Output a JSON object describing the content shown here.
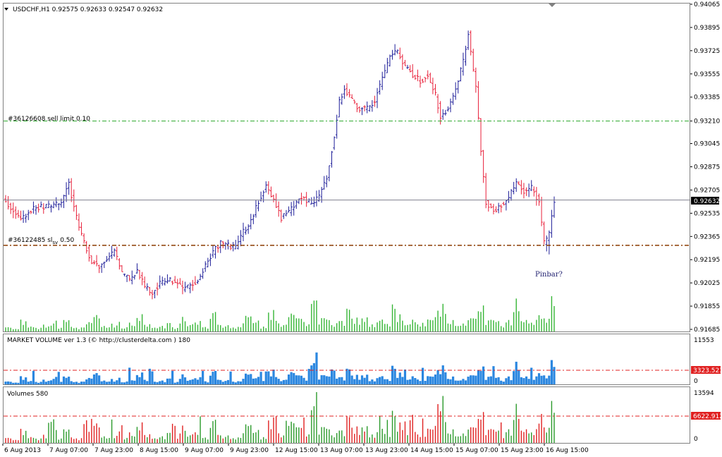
{
  "window": {
    "symbol_header": "USDCHF,H1  0.92575 0.92633 0.92547 0.92632",
    "menu_icon": "triangle-down-icon"
  },
  "price_pane": {
    "current_price": "0.92632",
    "order_sell_limit": {
      "label": "#36126608 sell limit 0.10",
      "price": 0.9321
    },
    "order_sl": {
      "label_main": "#36122485 sl",
      "label_sub": "sv",
      "label_tail": "0.50",
      "price": 0.923
    },
    "annotation": "Pinbar?",
    "y_ticks": [
      "0.94065",
      "0.93895",
      "0.93725",
      "0.93555",
      "0.93385",
      "0.93210",
      "0.93045",
      "0.92875",
      "0.92705",
      "0.92535",
      "0.92365",
      "0.92195",
      "0.92025",
      "0.91855",
      "0.91685"
    ],
    "colors": {
      "bull": "#1f1f99",
      "bear": "#e8203a",
      "volume": "#35b535",
      "sell_limit": "#2aa82a",
      "sl": "#8b3a00",
      "price_line": "#7f7f8f"
    }
  },
  "market_volume_pane": {
    "title": "MARKET VOLUME ver 1.3 (© http://clusterdelta.com ) 180",
    "y_top": "11553",
    "y_bottom": "0",
    "level": "3323.523",
    "colors": {
      "bar": "#2b87e0",
      "level": "#e02020"
    }
  },
  "volumes_pane": {
    "title": "Volumes 580",
    "y_top": "13594",
    "y_bottom": "0",
    "level": "6622.912",
    "colors": {
      "up": "#2b9a2b",
      "down": "#e02020"
    }
  },
  "time_axis": {
    "labels": [
      "6 Aug 2013",
      "7 Aug 07:00",
      "7 Aug 23:00",
      "8 Aug 15:00",
      "9 Aug 07:00",
      "9 Aug 23:00",
      "12 Aug 15:00",
      "13 Aug 07:00",
      "13 Aug 23:00",
      "14 Aug 15:00",
      "15 Aug 07:00",
      "15 Aug 23:00",
      "16 Aug 15:00"
    ]
  },
  "chart_data": {
    "type": "candlestick",
    "symbol": "USDCHF",
    "timeframe": "H1",
    "ylim": [
      0.91685,
      0.94065
    ],
    "anchors": [
      [
        0,
        0.9262
      ],
      [
        6,
        0.925
      ],
      [
        12,
        0.9258
      ],
      [
        18,
        0.9259
      ],
      [
        22,
        0.9262
      ],
      [
        25,
        0.9275
      ],
      [
        28,
        0.925
      ],
      [
        31,
        0.9232
      ],
      [
        34,
        0.9218
      ],
      [
        37,
        0.9215
      ],
      [
        40,
        0.922
      ],
      [
        43,
        0.9225
      ],
      [
        46,
        0.921
      ],
      [
        49,
        0.9205
      ],
      [
        52,
        0.9212
      ],
      [
        55,
        0.92
      ],
      [
        58,
        0.9195
      ],
      [
        61,
        0.9202
      ],
      [
        64,
        0.9205
      ],
      [
        67,
        0.9204
      ],
      [
        70,
        0.9198
      ],
      [
        73,
        0.92
      ],
      [
        76,
        0.9205
      ],
      [
        79,
        0.9215
      ],
      [
        82,
        0.9225
      ],
      [
        85,
        0.9232
      ],
      [
        88,
        0.923
      ],
      [
        91,
        0.9228
      ],
      [
        94,
        0.924
      ],
      [
        97,
        0.9248
      ],
      [
        100,
        0.9262
      ],
      [
        103,
        0.9275
      ],
      [
        106,
        0.9262
      ],
      [
        109,
        0.925
      ],
      [
        112,
        0.9255
      ],
      [
        115,
        0.9262
      ],
      [
        118,
        0.9265
      ],
      [
        121,
        0.926
      ],
      [
        124,
        0.9265
      ],
      [
        127,
        0.928
      ],
      [
        130,
        0.931
      ],
      [
        132,
        0.9335
      ],
      [
        134,
        0.9345
      ],
      [
        137,
        0.9336
      ],
      [
        140,
        0.933
      ],
      [
        143,
        0.933
      ],
      [
        146,
        0.9336
      ],
      [
        149,
        0.9352
      ],
      [
        152,
        0.9368
      ],
      [
        155,
        0.9372
      ],
      [
        158,
        0.936
      ],
      [
        161,
        0.9355
      ],
      [
        164,
        0.935
      ],
      [
        167,
        0.9355
      ],
      [
        170,
        0.934
      ],
      [
        172,
        0.9325
      ],
      [
        175,
        0.933
      ],
      [
        178,
        0.9345
      ],
      [
        181,
        0.9365
      ],
      [
        183,
        0.9385
      ],
      [
        186,
        0.9345
      ],
      [
        188,
        0.93
      ],
      [
        190,
        0.9262
      ],
      [
        193,
        0.9255
      ],
      [
        196,
        0.926
      ],
      [
        199,
        0.9265
      ],
      [
        202,
        0.9275
      ],
      [
        205,
        0.927
      ],
      [
        208,
        0.9272
      ],
      [
        211,
        0.9262
      ],
      [
        213,
        0.9232
      ],
      [
        215,
        0.9238
      ],
      [
        217,
        0.9263
      ]
    ],
    "volume_profile": [
      5,
      3,
      9,
      4,
      3,
      6,
      8,
      4,
      10,
      5,
      3,
      7,
      12,
      4,
      6,
      9,
      3,
      8,
      15,
      6,
      4,
      5,
      7,
      3,
      11,
      6,
      9,
      4,
      14,
      5,
      7,
      3,
      6,
      12,
      8,
      4,
      18,
      9,
      6,
      13,
      10,
      7,
      24,
      11,
      9,
      6,
      8,
      17,
      10,
      12,
      7,
      9,
      6,
      20,
      14,
      8,
      11,
      7,
      10,
      16,
      21,
      9,
      6,
      8,
      13,
      22,
      10,
      12,
      6,
      9,
      27,
      14,
      8,
      18,
      11,
      36
    ],
    "market_volume_level": 3323.523,
    "market_volume_max": 11553,
    "volumes_level": 6622.912,
    "volumes_max": 13594
  }
}
